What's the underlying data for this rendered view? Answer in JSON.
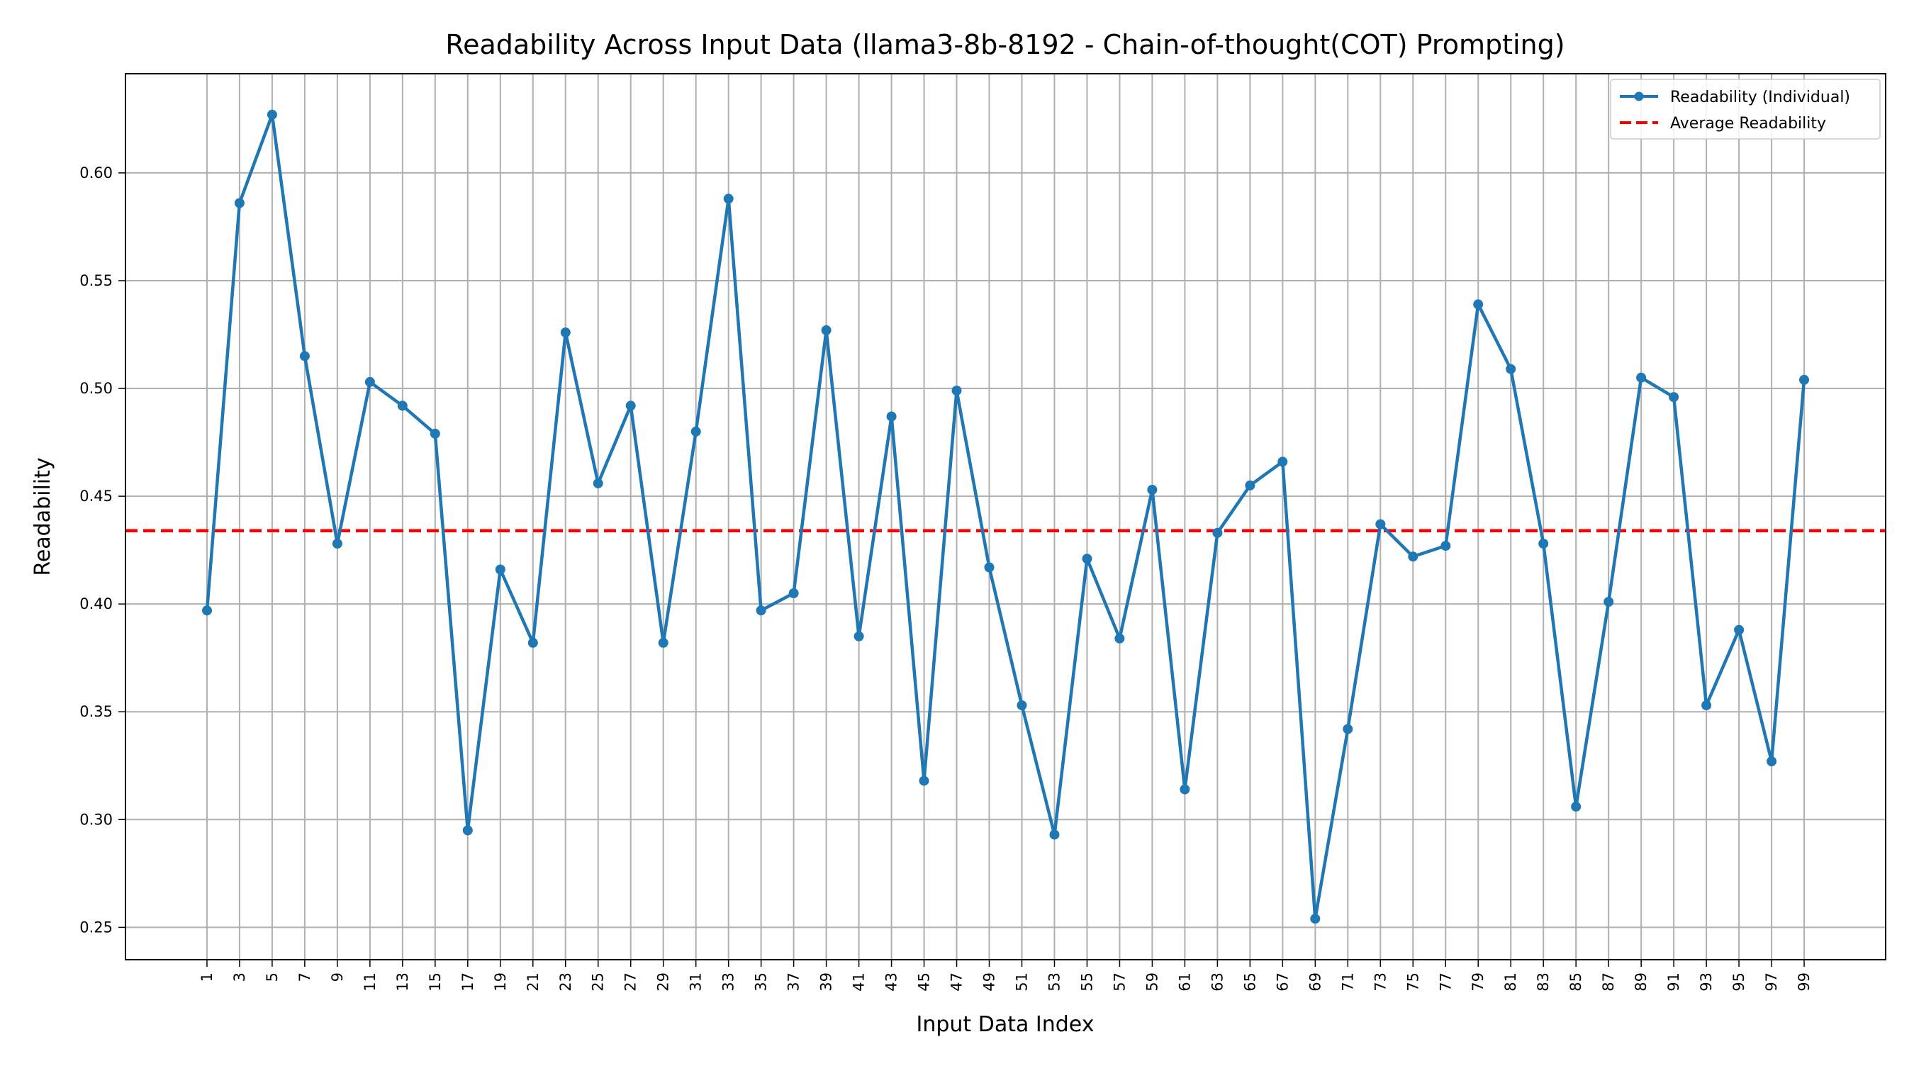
{
  "chart_data": {
    "type": "line",
    "title": "Readability Across Input Data (llama3-8b-8192 - Chain-of-thought(COT) Prompting)",
    "xlabel": "Input Data Index",
    "ylabel": "Readability",
    "grid": true,
    "legend_position": "top-right",
    "xlim": [
      -4,
      104
    ],
    "ylim": [
      0.235,
      0.646
    ],
    "x_ticks": [
      1,
      3,
      5,
      7,
      9,
      11,
      13,
      15,
      17,
      19,
      21,
      23,
      25,
      27,
      29,
      31,
      33,
      35,
      37,
      39,
      41,
      43,
      45,
      47,
      49,
      51,
      53,
      55,
      57,
      59,
      61,
      63,
      65,
      67,
      69,
      71,
      73,
      75,
      77,
      79,
      81,
      83,
      85,
      87,
      89,
      91,
      93,
      95,
      97,
      99
    ],
    "y_ticks": [
      0.25,
      0.3,
      0.35,
      0.4,
      0.45,
      0.5,
      0.55,
      0.6
    ],
    "y_tick_labels": [
      "0.25",
      "0.30",
      "0.35",
      "0.40",
      "0.45",
      "0.50",
      "0.55",
      "0.60"
    ],
    "series": [
      {
        "name": "Readability (Individual)",
        "style": "solid-line-with-markers",
        "color": "#1f77b4",
        "x": [
          1,
          3,
          5,
          7,
          9,
          11,
          13,
          15,
          17,
          19,
          21,
          23,
          25,
          27,
          29,
          31,
          33,
          35,
          37,
          39,
          41,
          43,
          45,
          47,
          49,
          51,
          53,
          55,
          57,
          59,
          61,
          63,
          65,
          67,
          69,
          71,
          73,
          75,
          77,
          79,
          81,
          83,
          85,
          87,
          89,
          91,
          93,
          95,
          97,
          99
        ],
        "values": [
          0.397,
          0.586,
          0.627,
          0.515,
          0.428,
          0.503,
          0.492,
          0.479,
          0.295,
          0.416,
          0.382,
          0.526,
          0.456,
          0.492,
          0.382,
          0.48,
          0.588,
          0.397,
          0.405,
          0.527,
          0.385,
          0.487,
          0.318,
          0.499,
          0.417,
          0.353,
          0.293,
          0.421,
          0.384,
          0.453,
          0.314,
          0.433,
          0.455,
          0.466,
          0.254,
          0.342,
          0.437,
          0.422,
          0.427,
          0.539,
          0.509,
          0.428,
          0.306,
          0.401,
          0.505,
          0.496,
          0.353,
          0.388,
          0.327,
          0.504
        ]
      },
      {
        "name": "Average Readability",
        "style": "dashed-horizontal-line",
        "color": "#ff0000",
        "value": 0.434
      }
    ]
  }
}
